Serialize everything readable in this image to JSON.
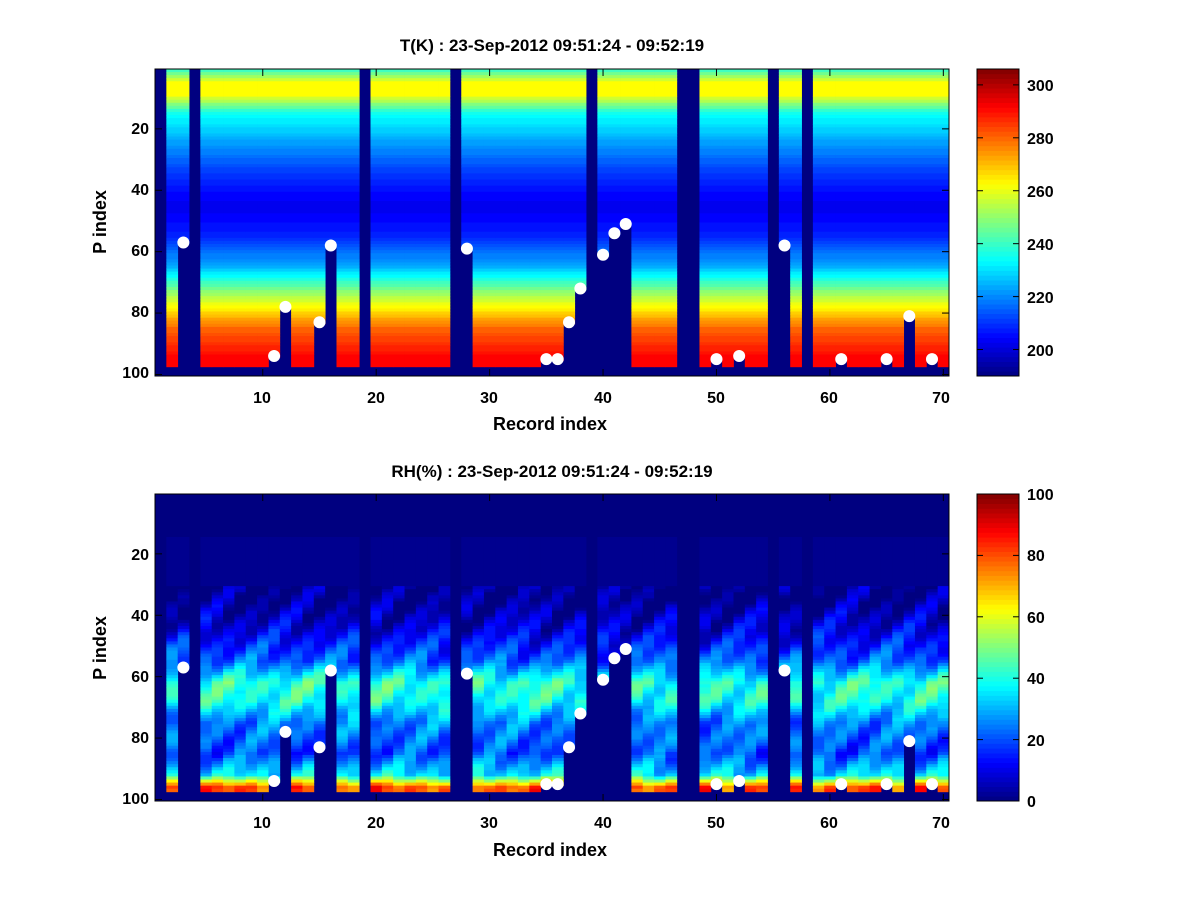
{
  "figure": {
    "panels": [
      {
        "title": "T(K) : 23-Sep-2012 09:51:24 - 09:52:19",
        "xlabel": "Record index",
        "ylabel": "P index",
        "colorbar_ticks": [
          "200",
          "220",
          "240",
          "260",
          "280",
          "300"
        ]
      },
      {
        "title": "RH(%) : 23-Sep-2012 09:51:24 - 09:52:19",
        "xlabel": "Record index",
        "ylabel": "P index",
        "colorbar_ticks": [
          "0",
          "20",
          "40",
          "60",
          "80",
          "100"
        ]
      }
    ],
    "x_ticks": [
      "10",
      "20",
      "30",
      "40",
      "50",
      "60",
      "70"
    ],
    "y_ticks": [
      "20",
      "40",
      "60",
      "80",
      "100"
    ]
  },
  "chart_data": [
    {
      "type": "heatmap",
      "title": "T(K) : 23-Sep-2012 09:51:24 - 09:52:19",
      "xlabel": "Record index",
      "ylabel": "P index",
      "xlim": [
        0.5,
        70.5
      ],
      "ylim": [
        0.5,
        100.5
      ],
      "y_reversed": true,
      "colormap": "jet",
      "clim": [
        190,
        306
      ],
      "profile_description_values": {
        "p_index": [
          1,
          5,
          9,
          15,
          25,
          35,
          45,
          55,
          65,
          75,
          85,
          95
        ],
        "temperature_K": [
          240,
          262,
          262,
          235,
          222,
          210,
          202,
          208,
          225,
          255,
          280,
          292
        ]
      },
      "missing_records": [
        1,
        4,
        19,
        27,
        39,
        47,
        48,
        55,
        58
      ],
      "surface_markers": [
        {
          "x": 3,
          "y": 57
        },
        {
          "x": 11,
          "y": 94
        },
        {
          "x": 12,
          "y": 78
        },
        {
          "x": 15,
          "y": 83
        },
        {
          "x": 16,
          "y": 58
        },
        {
          "x": 28,
          "y": 59
        },
        {
          "x": 35,
          "y": 95
        },
        {
          "x": 36,
          "y": 95
        },
        {
          "x": 37,
          "y": 83
        },
        {
          "x": 38,
          "y": 72
        },
        {
          "x": 40,
          "y": 61
        },
        {
          "x": 41,
          "y": 54
        },
        {
          "x": 42,
          "y": 51
        },
        {
          "x": 50,
          "y": 95
        },
        {
          "x": 52,
          "y": 94
        },
        {
          "x": 56,
          "y": 58
        },
        {
          "x": 61,
          "y": 95
        },
        {
          "x": 65,
          "y": 95
        },
        {
          "x": 67,
          "y": 81
        },
        {
          "x": 69,
          "y": 95
        }
      ],
      "colorbar": {
        "ticks": [
          200,
          220,
          240,
          260,
          280,
          300
        ]
      }
    },
    {
      "type": "heatmap",
      "title": "RH(%) : 23-Sep-2012 09:51:24 - 09:52:19",
      "xlabel": "Record index",
      "ylabel": "P index",
      "xlim": [
        0.5,
        70.5
      ],
      "ylim": [
        0.5,
        100.5
      ],
      "y_reversed": true,
      "colormap": "jet",
      "clim": [
        0,
        100
      ],
      "profile_description_values": {
        "p_index": [
          1,
          35,
          45,
          55,
          62,
          68,
          75,
          85,
          92,
          96
        ],
        "relative_humidity_pct": [
          0,
          2,
          10,
          22,
          42,
          40,
          25,
          20,
          35,
          80
        ]
      },
      "missing_records": [
        1,
        4,
        19,
        27,
        39,
        47,
        48,
        55,
        58
      ],
      "surface_markers": [
        {
          "x": 3,
          "y": 57
        },
        {
          "x": 11,
          "y": 94
        },
        {
          "x": 12,
          "y": 78
        },
        {
          "x": 15,
          "y": 83
        },
        {
          "x": 16,
          "y": 58
        },
        {
          "x": 28,
          "y": 59
        },
        {
          "x": 35,
          "y": 95
        },
        {
          "x": 36,
          "y": 95
        },
        {
          "x": 37,
          "y": 83
        },
        {
          "x": 38,
          "y": 72
        },
        {
          "x": 40,
          "y": 61
        },
        {
          "x": 41,
          "y": 54
        },
        {
          "x": 42,
          "y": 51
        },
        {
          "x": 50,
          "y": 95
        },
        {
          "x": 52,
          "y": 94
        },
        {
          "x": 56,
          "y": 58
        },
        {
          "x": 61,
          "y": 95
        },
        {
          "x": 65,
          "y": 95
        },
        {
          "x": 67,
          "y": 81
        },
        {
          "x": 69,
          "y": 95
        }
      ],
      "colorbar": {
        "ticks": [
          0,
          20,
          40,
          60,
          80,
          100
        ]
      }
    }
  ]
}
